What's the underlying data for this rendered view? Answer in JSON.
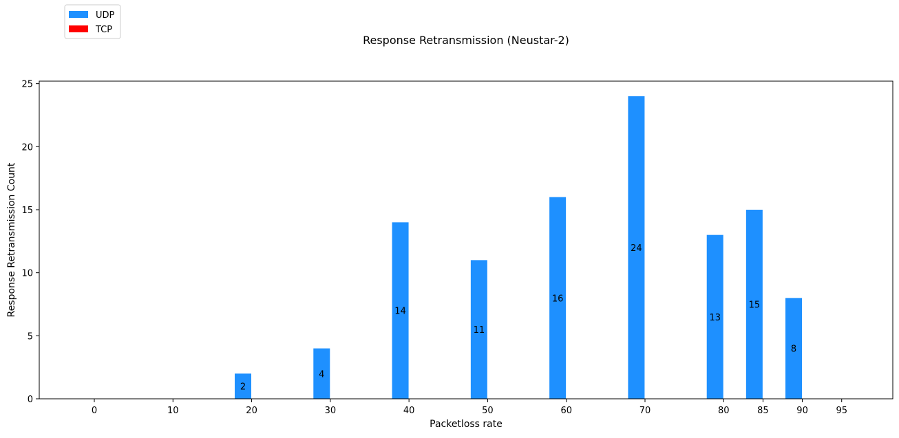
{
  "chart_data": {
    "type": "bar",
    "title": "Response Retransmission (Neustar-2)",
    "xlabel": "Packetloss rate",
    "ylabel": "Response Retransmission Count",
    "categories": [
      "0",
      "10",
      "20",
      "30",
      "40",
      "50",
      "60",
      "70",
      "80",
      "85",
      "90",
      "95"
    ],
    "x": [
      0,
      10,
      20,
      30,
      40,
      50,
      60,
      70,
      80,
      85,
      90,
      95
    ],
    "series": [
      {
        "name": "UDP",
        "color": "#1e90ff",
        "values": [
          0,
          0,
          2,
          4,
          14,
          11,
          16,
          24,
          13,
          15,
          8,
          0
        ]
      },
      {
        "name": "TCP",
        "color": "#ff0000",
        "values": [
          0,
          0,
          0,
          0,
          0,
          0,
          0,
          0,
          0,
          0,
          0,
          0
        ]
      }
    ],
    "data_labels": [
      {
        "x": 20,
        "value": "2"
      },
      {
        "x": 30,
        "value": "4"
      },
      {
        "x": 40,
        "value": "14"
      },
      {
        "x": 50,
        "value": "11"
      },
      {
        "x": 60,
        "value": "16"
      },
      {
        "x": 70,
        "value": "24"
      },
      {
        "x": 80,
        "value": "13"
      },
      {
        "x": 85,
        "value": "15"
      },
      {
        "x": 90,
        "value": "8"
      }
    ],
    "yticks": [
      0,
      5,
      10,
      15,
      20,
      25
    ],
    "ylim": [
      0,
      25.2
    ],
    "xlim": [
      -7,
      101.5
    ],
    "grid": false,
    "legend_position": "top-left"
  }
}
